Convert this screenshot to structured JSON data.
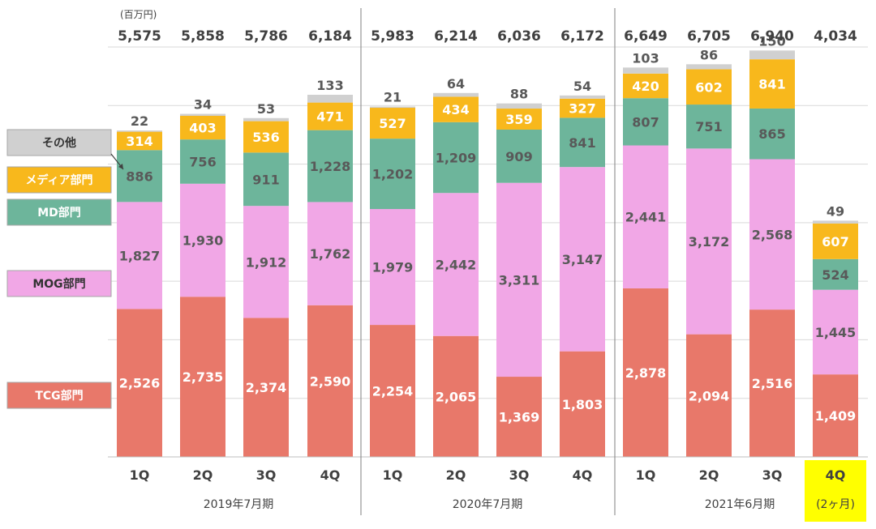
{
  "chart_data": {
    "type": "bar",
    "stacked": true,
    "unit_label": "(百万円)",
    "categories": [
      "1Q",
      "2Q",
      "3Q",
      "4Q",
      "1Q",
      "2Q",
      "3Q",
      "4Q",
      "1Q",
      "2Q",
      "3Q",
      "4Q"
    ],
    "periods": [
      {
        "label": "2019年7月期",
        "from": 0,
        "to": 3
      },
      {
        "label": "2020年7月期",
        "from": 4,
        "to": 7
      },
      {
        "label": "2021年6月期",
        "from": 8,
        "to": 11
      }
    ],
    "highlight": {
      "index": 11,
      "label": "4Q",
      "sublabel": "(2ヶ月)",
      "color": "#FFFF00"
    },
    "totals": [
      "5,575",
      "5,858",
      "5,786",
      "6,184",
      "5,983",
      "6,214",
      "6,036",
      "6,172",
      "6,649",
      "6,705",
      "6,940",
      "4,034"
    ],
    "series": [
      {
        "name": "TCG部門",
        "color": "#E8786A",
        "values": [
          2526,
          2735,
          2374,
          2590,
          2254,
          2065,
          1369,
          1803,
          2878,
          2094,
          2516,
          1409
        ]
      },
      {
        "name": "MOG部門",
        "color": "#F1A7E6",
        "values": [
          1827,
          1930,
          1912,
          1762,
          1979,
          2442,
          3311,
          3147,
          2441,
          3172,
          2568,
          1445
        ]
      },
      {
        "name": "MD部門",
        "color": "#6DB59B",
        "values": [
          886,
          756,
          911,
          1228,
          1202,
          1209,
          909,
          841,
          807,
          751,
          865,
          524
        ]
      },
      {
        "name": "メディア部門",
        "color": "#F8B81C",
        "values": [
          314,
          403,
          536,
          471,
          527,
          434,
          359,
          327,
          420,
          602,
          841,
          607
        ]
      },
      {
        "name": "その他",
        "color": "#D0D0D0",
        "values": [
          22,
          34,
          53,
          133,
          21,
          64,
          88,
          54,
          103,
          86,
          150,
          49
        ]
      }
    ],
    "ylim": [
      0,
      7000
    ],
    "legend_position": "left",
    "grid": true
  }
}
